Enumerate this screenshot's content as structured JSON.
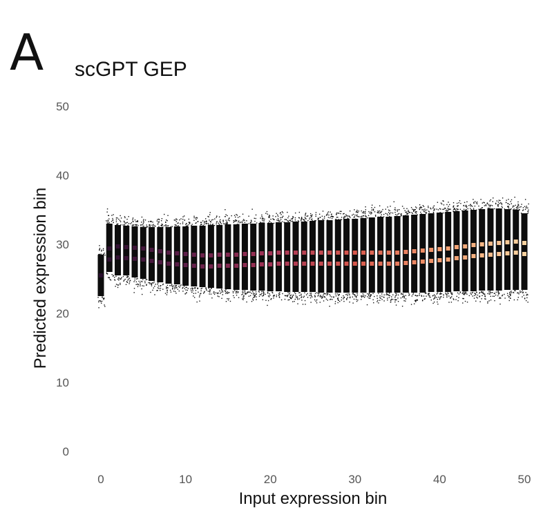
{
  "panel_label": "A",
  "chart_data": {
    "type": "scatter",
    "title": "scGPT GEP",
    "xlabel": "Input expression bin",
    "ylabel": "Predicted expression bin",
    "xlim": [
      0,
      50
    ],
    "ylim": [
      0,
      50
    ],
    "xticks": [
      0,
      10,
      20,
      30,
      40,
      50
    ],
    "yticks": [
      0,
      10,
      20,
      30,
      40,
      50
    ],
    "grid": false,
    "legend": "none",
    "series": [
      {
        "x": [
          0,
          1,
          2,
          3,
          4,
          5,
          6,
          7,
          8,
          9,
          10,
          11,
          12,
          13,
          14,
          15,
          16,
          17,
          18,
          19,
          20,
          21,
          22,
          23,
          24,
          25,
          26,
          27,
          28,
          29,
          30,
          31,
          32,
          33,
          34,
          35,
          36,
          37,
          38,
          39,
          40,
          41,
          42,
          43,
          44,
          45,
          46,
          47,
          48,
          49,
          50
        ],
        "median": [
          25.5,
          28.6,
          28.9,
          28.8,
          28.7,
          28.6,
          28.4,
          28.2,
          28.0,
          27.9,
          27.8,
          27.7,
          27.6,
          27.6,
          27.7,
          27.7,
          27.7,
          27.8,
          27.8,
          27.9,
          27.9,
          28.0,
          28.0,
          28.0,
          28.0,
          28.0,
          28.0,
          28.0,
          28.0,
          28.0,
          28.0,
          28.0,
          28.0,
          28.0,
          28.0,
          28.0,
          28.1,
          28.2,
          28.3,
          28.4,
          28.5,
          28.6,
          28.8,
          28.9,
          29.1,
          29.2,
          29.3,
          29.4,
          29.5,
          29.6,
          29.4
        ],
        "lower": [
          22.5,
          26.0,
          25.5,
          25.5,
          25.2,
          25.0,
          24.7,
          24.5,
          24.3,
          24.2,
          24.0,
          23.9,
          23.8,
          23.7,
          23.6,
          23.5,
          23.4,
          23.4,
          23.3,
          23.3,
          23.2,
          23.2,
          23.1,
          23.1,
          23.1,
          23.1,
          23.0,
          23.0,
          23.0,
          23.0,
          23.0,
          23.0,
          23.0,
          23.0,
          23.0,
          23.0,
          23.0,
          23.0,
          23.0,
          23.1,
          23.1,
          23.1,
          23.2,
          23.2,
          23.2,
          23.3,
          23.3,
          23.3,
          23.4,
          23.4,
          23.4
        ],
        "upper": [
          28.5,
          33.0,
          32.8,
          32.7,
          32.6,
          32.5,
          32.5,
          32.5,
          32.5,
          32.6,
          32.6,
          32.7,
          32.7,
          32.8,
          32.8,
          32.9,
          32.9,
          33.0,
          33.0,
          33.1,
          33.1,
          33.2,
          33.2,
          33.3,
          33.3,
          33.4,
          33.5,
          33.5,
          33.6,
          33.7,
          33.7,
          33.8,
          33.9,
          34.0,
          34.0,
          34.1,
          34.2,
          34.3,
          34.4,
          34.5,
          34.6,
          34.7,
          34.8,
          34.9,
          35.0,
          35.1,
          35.2,
          35.2,
          35.1,
          35.0,
          34.5
        ]
      }
    ],
    "colormap": [
      "#2a0f2e",
      "#5e1f4a",
      "#a33356",
      "#d8584c",
      "#f39a6b",
      "#fbd3a0"
    ]
  }
}
